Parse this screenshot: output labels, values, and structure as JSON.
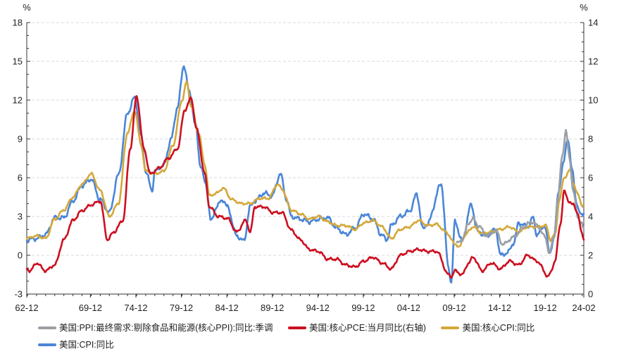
{
  "chart_data": {
    "type": "line",
    "title": "",
    "left_axis": {
      "unit_label": "%",
      "ylim": [
        -3,
        18
      ],
      "ticks": [
        -3,
        0,
        3,
        6,
        9,
        12,
        15,
        18
      ]
    },
    "right_axis": {
      "unit_label": "%",
      "ylim": [
        0,
        14
      ],
      "ticks": [
        0,
        2,
        4,
        6,
        8,
        10,
        12,
        14
      ]
    },
    "x_axis": {
      "start": 1962.92,
      "end": 2024.17,
      "tick_labels": [
        "62-12",
        "69-12",
        "74-12",
        "79-12",
        "84-12",
        "89-12",
        "94-12",
        "99-12",
        "04-12",
        "09-12",
        "14-12",
        "19-12",
        "24-02"
      ],
      "tick_years": [
        1962.92,
        1969.92,
        1974.92,
        1979.92,
        1984.92,
        1989.92,
        1994.92,
        1999.92,
        2004.92,
        2009.92,
        2014.92,
        2019.92,
        2024.17
      ]
    },
    "grid": "horizontal-dashed",
    "series": [
      {
        "name": "美国:CPI:同比",
        "axis": "left",
        "color": "#4a86d8",
        "points": [
          [
            1962.92,
            1.2
          ],
          [
            1964,
            1.3
          ],
          [
            1965,
            1.6
          ],
          [
            1966,
            2.9
          ],
          [
            1967,
            2.9
          ],
          [
            1968,
            4.2
          ],
          [
            1969,
            5.4
          ],
          [
            1970,
            5.9
          ],
          [
            1971,
            4.3
          ],
          [
            1972,
            3.3
          ],
          [
            1973,
            6.2
          ],
          [
            1974,
            11.0
          ],
          [
            1974.8,
            12.2
          ],
          [
            1975.5,
            9.2
          ],
          [
            1976,
            6.5
          ],
          [
            1976.7,
            5.0
          ],
          [
            1977,
            6.5
          ],
          [
            1978,
            7.0
          ],
          [
            1978.8,
            9.0
          ],
          [
            1979.5,
            11.5
          ],
          [
            1980.2,
            14.7
          ],
          [
            1980.8,
            12.6
          ],
          [
            1981.5,
            10.0
          ],
          [
            1982,
            7.0
          ],
          [
            1982.6,
            5.5
          ],
          [
            1983.2,
            2.6
          ],
          [
            1983.8,
            3.8
          ],
          [
            1984.5,
            4.3
          ],
          [
            1985,
            3.7
          ],
          [
            1986,
            1.5
          ],
          [
            1986.8,
            1.1
          ],
          [
            1987.5,
            3.8
          ],
          [
            1988,
            4.2
          ],
          [
            1989,
            4.8
          ],
          [
            1989.9,
            4.6
          ],
          [
            1990.8,
            6.3
          ],
          [
            1991.5,
            4.3
          ],
          [
            1992,
            3.0
          ],
          [
            1993,
            2.8
          ],
          [
            1994,
            2.6
          ],
          [
            1995,
            2.8
          ],
          [
            1996,
            2.9
          ],
          [
            1997,
            2.1
          ],
          [
            1998,
            1.6
          ],
          [
            1999,
            2.1
          ],
          [
            2000,
            3.2
          ],
          [
            2001,
            2.8
          ],
          [
            2001.9,
            1.6
          ],
          [
            2002.5,
            1.2
          ],
          [
            2003,
            2.3
          ],
          [
            2004,
            3.0
          ],
          [
            2005,
            3.4
          ],
          [
            2005.8,
            4.7
          ],
          [
            2006.5,
            2.0
          ],
          [
            2007,
            2.5
          ],
          [
            2008.5,
            5.5
          ],
          [
            2009.3,
            -1.0
          ],
          [
            2009.6,
            -2.1
          ],
          [
            2010,
            2.6
          ],
          [
            2010.8,
            1.1
          ],
          [
            2011.8,
            3.9
          ],
          [
            2012.5,
            1.8
          ],
          [
            2013.5,
            1.5
          ],
          [
            2014.5,
            2.0
          ],
          [
            2015,
            0.0
          ],
          [
            2015.8,
            0.2
          ],
          [
            2016.5,
            1.0
          ],
          [
            2017,
            2.5
          ],
          [
            2018,
            2.2
          ],
          [
            2018.6,
            2.9
          ],
          [
            2019,
            1.6
          ],
          [
            2019.9,
            2.3
          ],
          [
            2020.4,
            0.1
          ],
          [
            2020.9,
            1.4
          ],
          [
            2021.4,
            5.0
          ],
          [
            2021.9,
            7.0
          ],
          [
            2022.4,
            9.1
          ],
          [
            2022.9,
            6.5
          ],
          [
            2023.4,
            4.0
          ],
          [
            2023.7,
            3.2
          ],
          [
            2024.17,
            3.2
          ]
        ]
      },
      {
        "name": "美国:核心CPI:同比",
        "axis": "left",
        "color": "#d4a83a",
        "points": [
          [
            1962.92,
            1.3
          ],
          [
            1964,
            1.5
          ],
          [
            1965,
            1.3
          ],
          [
            1966,
            2.8
          ],
          [
            1967,
            3.5
          ],
          [
            1968,
            4.5
          ],
          [
            1969,
            5.5
          ],
          [
            1970,
            6.3
          ],
          [
            1971,
            5.0
          ],
          [
            1972,
            3.0
          ],
          [
            1973,
            4.0
          ],
          [
            1974,
            9.5
          ],
          [
            1974.8,
            11.2
          ],
          [
            1975.5,
            8.5
          ],
          [
            1976,
            6.5
          ],
          [
            1977,
            6.3
          ],
          [
            1978,
            6.5
          ],
          [
            1979,
            8.5
          ],
          [
            1980,
            12.0
          ],
          [
            1980.5,
            13.4
          ],
          [
            1981,
            11.5
          ],
          [
            1981.8,
            9.5
          ],
          [
            1982.5,
            7.0
          ],
          [
            1983,
            4.6
          ],
          [
            1983.8,
            4.8
          ],
          [
            1984.5,
            5.2
          ],
          [
            1985.5,
            4.3
          ],
          [
            1986.5,
            4.0
          ],
          [
            1987.5,
            4.0
          ],
          [
            1988.5,
            4.4
          ],
          [
            1989.5,
            4.4
          ],
          [
            1990.5,
            5.5
          ],
          [
            1991,
            5.1
          ],
          [
            1992,
            3.5
          ],
          [
            1993,
            3.2
          ],
          [
            1994,
            2.8
          ],
          [
            1995,
            3.0
          ],
          [
            1996,
            2.6
          ],
          [
            1997,
            2.3
          ],
          [
            1998,
            2.3
          ],
          [
            1999,
            2.0
          ],
          [
            2000,
            2.5
          ],
          [
            2001,
            2.7
          ],
          [
            2002,
            2.2
          ],
          [
            2003,
            1.3
          ],
          [
            2004,
            2.0
          ],
          [
            2005,
            2.2
          ],
          [
            2006,
            2.7
          ],
          [
            2007,
            2.3
          ],
          [
            2008,
            2.4
          ],
          [
            2009,
            1.8
          ],
          [
            2010,
            0.9
          ],
          [
            2010.5,
            0.6
          ],
          [
            2011,
            1.5
          ],
          [
            2012,
            2.2
          ],
          [
            2013,
            1.7
          ],
          [
            2014,
            1.8
          ],
          [
            2015,
            2.0
          ],
          [
            2016,
            2.2
          ],
          [
            2017,
            1.8
          ],
          [
            2018,
            2.2
          ],
          [
            2019,
            2.2
          ],
          [
            2020,
            2.3
          ],
          [
            2020.5,
            1.2
          ],
          [
            2021,
            1.6
          ],
          [
            2021.5,
            4.3
          ],
          [
            2022,
            6.0
          ],
          [
            2022.7,
            6.6
          ],
          [
            2023,
            5.6
          ],
          [
            2023.5,
            4.7
          ],
          [
            2024,
            3.9
          ],
          [
            2024.17,
            3.8
          ]
        ]
      },
      {
        "name": "美国:PPI:最终需求:剔除食品和能源(核心PPI):同比:季调",
        "axis": "left",
        "color": "#9aa0a6",
        "points": [
          [
            2010.2,
            0.9
          ],
          [
            2010.8,
            1.2
          ],
          [
            2011.5,
            2.5
          ],
          [
            2012,
            2.8
          ],
          [
            2012.7,
            2.2
          ],
          [
            2013.5,
            1.5
          ],
          [
            2014.5,
            1.9
          ],
          [
            2015.3,
            0.8
          ],
          [
            2016,
            1.2
          ],
          [
            2016.8,
            1.6
          ],
          [
            2017.5,
            2.2
          ],
          [
            2018.5,
            2.6
          ],
          [
            2019.2,
            2.2
          ],
          [
            2019.9,
            1.4
          ],
          [
            2020.4,
            0.2
          ],
          [
            2020.9,
            1.4
          ],
          [
            2021.3,
            4.2
          ],
          [
            2021.8,
            7.7
          ],
          [
            2022.2,
            9.6
          ],
          [
            2022.6,
            7.5
          ],
          [
            2023,
            5.0
          ],
          [
            2023.5,
            3.0
          ],
          [
            2023.9,
            2.5
          ],
          [
            2024.17,
            2.0
          ]
        ]
      },
      {
        "name": "美国:核心PCE:当月同比(右轴)",
        "axis": "right",
        "color": "#cc1020",
        "points": [
          [
            1962.92,
            1.3
          ],
          [
            1963.3,
            1.2
          ],
          [
            1964,
            1.6
          ],
          [
            1965,
            1.2
          ],
          [
            1966,
            1.5
          ],
          [
            1967,
            2.8
          ],
          [
            1968,
            3.8
          ],
          [
            1969,
            4.3
          ],
          [
            1970,
            4.6
          ],
          [
            1971,
            4.8
          ],
          [
            1971.8,
            2.8
          ],
          [
            1972.5,
            3.2
          ],
          [
            1973.5,
            3.8
          ],
          [
            1974.3,
            7.5
          ],
          [
            1975,
            10.2
          ],
          [
            1975.8,
            7.5
          ],
          [
            1976.5,
            6.2
          ],
          [
            1977.5,
            6.5
          ],
          [
            1978.5,
            7.0
          ],
          [
            1979.5,
            7.5
          ],
          [
            1980.3,
            9.5
          ],
          [
            1981,
            10.1
          ],
          [
            1981.6,
            8.5
          ],
          [
            1982.5,
            6.2
          ],
          [
            1983,
            4.5
          ],
          [
            1984,
            4.0
          ],
          [
            1985,
            3.9
          ],
          [
            1986,
            3.2
          ],
          [
            1987,
            3.8
          ],
          [
            1987.5,
            3.2
          ],
          [
            1988,
            4.5
          ],
          [
            1989,
            4.5
          ],
          [
            1990,
            4.2
          ],
          [
            1991,
            4.2
          ],
          [
            1992,
            3.3
          ],
          [
            1993,
            2.8
          ],
          [
            1994,
            2.3
          ],
          [
            1995,
            2.2
          ],
          [
            1996,
            1.8
          ],
          [
            1997,
            1.8
          ],
          [
            1998,
            1.5
          ],
          [
            1999,
            1.4
          ],
          [
            2000,
            1.7
          ],
          [
            2001,
            1.9
          ],
          [
            2002,
            1.6
          ],
          [
            2003,
            1.3
          ],
          [
            2004,
            2.0
          ],
          [
            2005,
            2.2
          ],
          [
            2006,
            2.3
          ],
          [
            2007,
            2.2
          ],
          [
            2008,
            2.2
          ],
          [
            2009.3,
            1.0
          ],
          [
            2009.6,
            0.9
          ],
          [
            2010,
            1.2
          ],
          [
            2010.8,
            1.0
          ],
          [
            2011.5,
            1.6
          ],
          [
            2012,
            1.9
          ],
          [
            2013,
            1.2
          ],
          [
            2014,
            1.6
          ],
          [
            2015,
            1.3
          ],
          [
            2016,
            1.7
          ],
          [
            2017,
            1.5
          ],
          [
            2018,
            2.0
          ],
          [
            2019,
            1.7
          ],
          [
            2020.3,
            0.9
          ],
          [
            2020.5,
            1.1
          ],
          [
            2021,
            1.7
          ],
          [
            2021.6,
            3.6
          ],
          [
            2022,
            5.3
          ],
          [
            2022.5,
            4.8
          ],
          [
            2023,
            4.6
          ],
          [
            2023.5,
            4.2
          ],
          [
            2023.9,
            3.2
          ],
          [
            2024.17,
            2.8
          ]
        ]
      }
    ]
  }
}
